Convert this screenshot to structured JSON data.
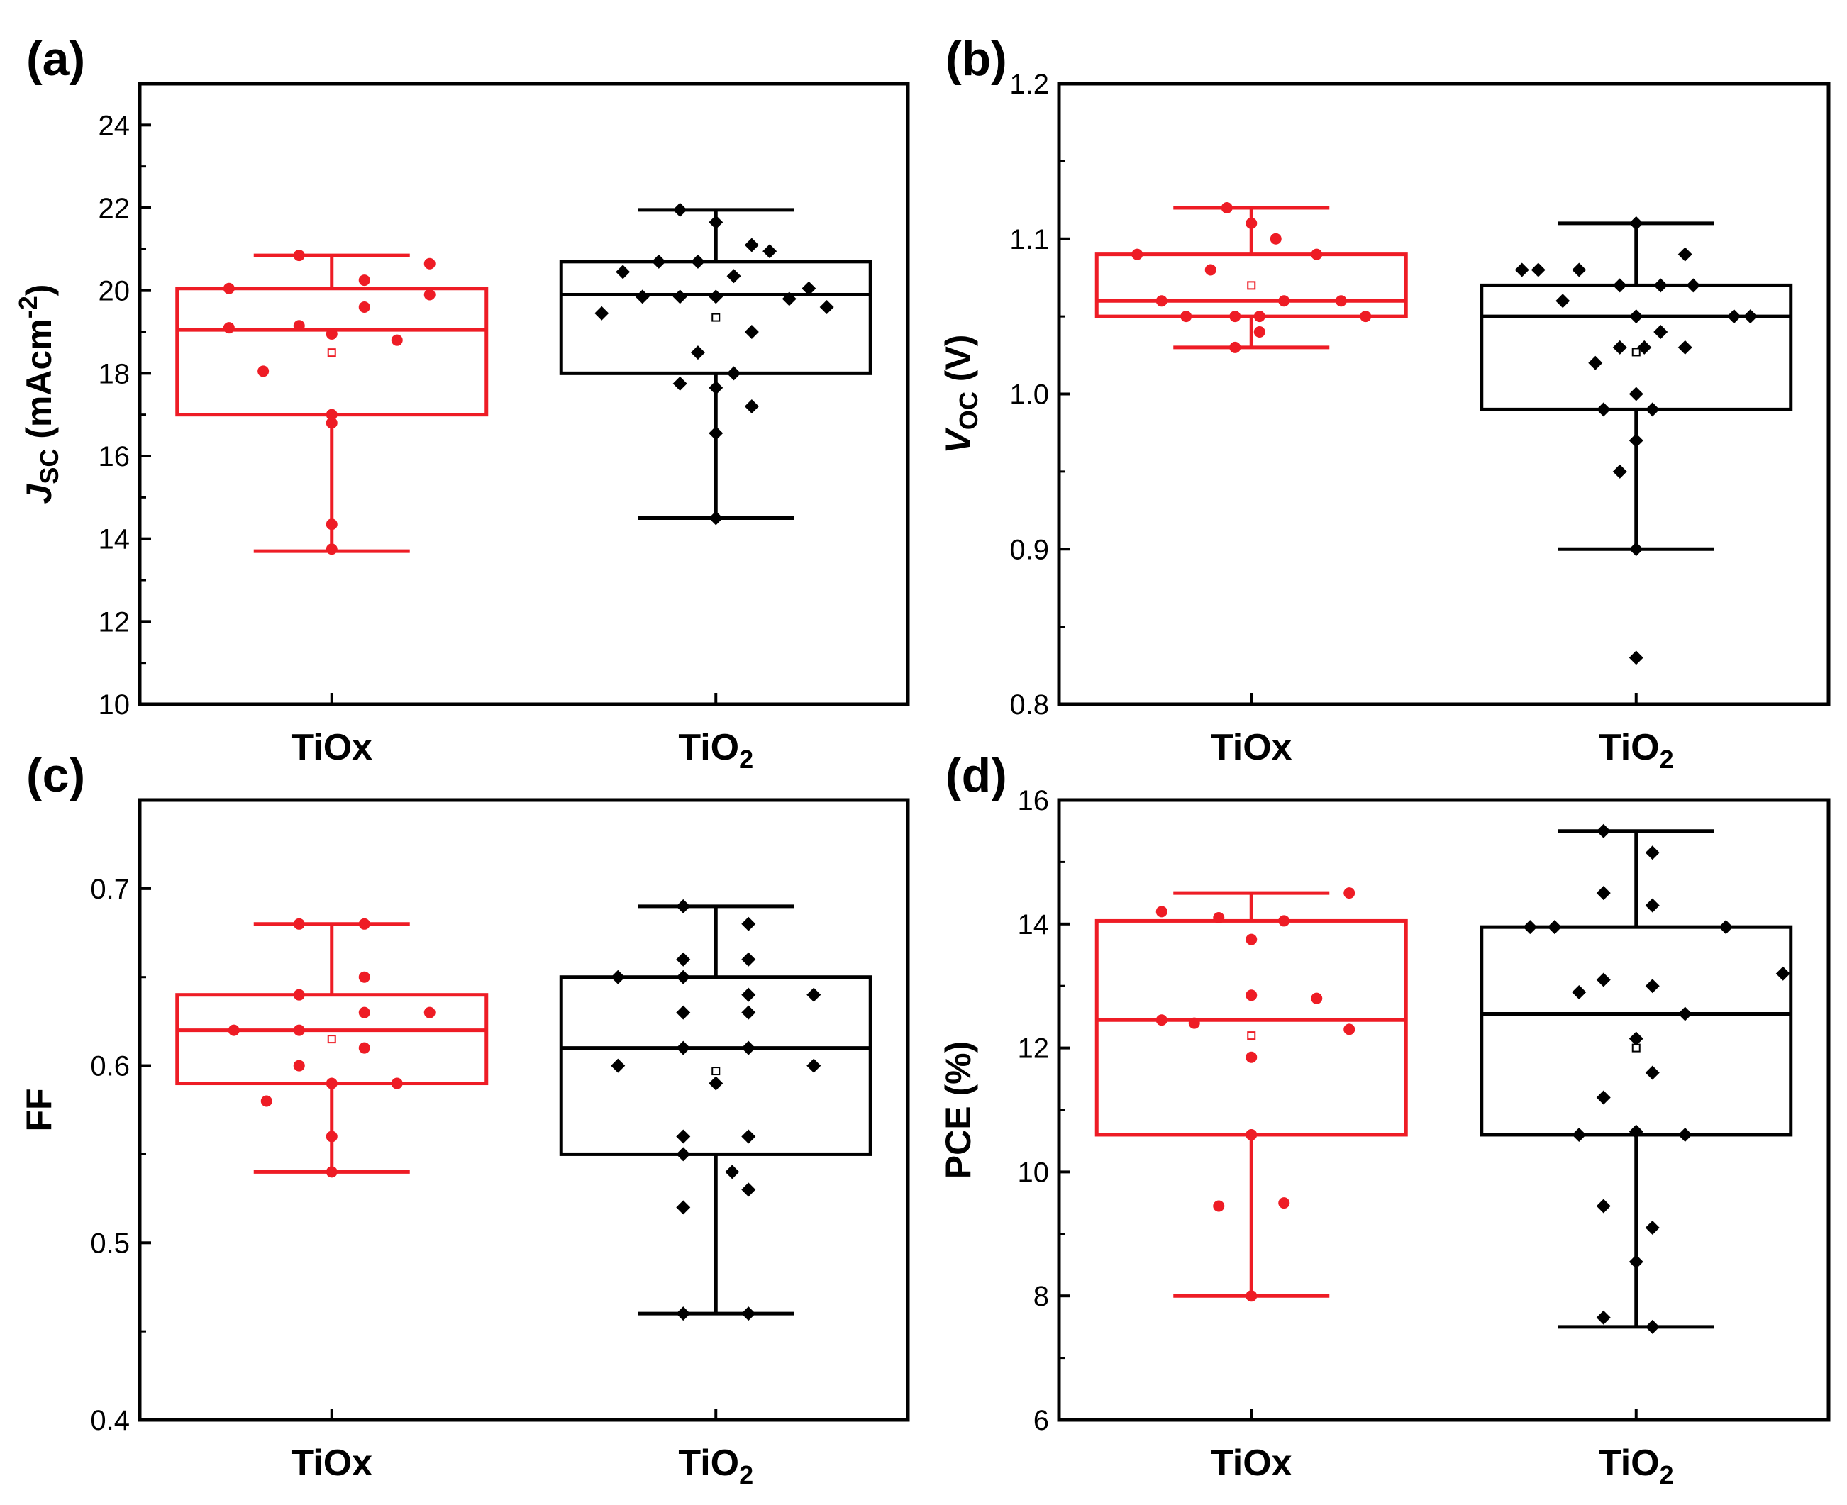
{
  "colors": {
    "TiOx": "#ee1c25",
    "TiO2": "#000000"
  },
  "chart_data": [
    {
      "type": "box",
      "panel": "(a)",
      "ylabel": {
        "main": "J",
        "sub": "SC",
        "unit_pre": " (mAcm",
        "sup": "-2",
        "unit_post": ")"
      },
      "ylim": [
        10,
        25
      ],
      "yticks": [
        10,
        12,
        14,
        16,
        18,
        20,
        22,
        24
      ],
      "ytick_labels": [
        "10",
        "12",
        "14",
        "16",
        "18",
        "20",
        "22",
        "24"
      ],
      "minor_step": 1,
      "categories": [
        {
          "label": "TiOx",
          "sub": "",
          "color": "TiOx",
          "marker": "circle",
          "box": {
            "whisker_low": 13.7,
            "q1": 17.0,
            "median": 19.05,
            "q3": 20.05,
            "whisker_high": 20.85,
            "mean": 18.5
          },
          "points": [
            {
              "dx": -0.63,
              "y": 20.05
            },
            {
              "dx": -0.63,
              "y": 19.1
            },
            {
              "dx": -0.42,
              "y": 18.05
            },
            {
              "dx": -0.2,
              "y": 20.85
            },
            {
              "dx": -0.2,
              "y": 19.15
            },
            {
              "dx": 0.0,
              "y": 18.95
            },
            {
              "dx": 0.0,
              "y": 17.0
            },
            {
              "dx": 0.0,
              "y": 16.8
            },
            {
              "dx": 0.0,
              "y": 14.35
            },
            {
              "dx": 0.0,
              "y": 13.75
            },
            {
              "dx": 0.2,
              "y": 20.25
            },
            {
              "dx": 0.2,
              "y": 19.6
            },
            {
              "dx": 0.4,
              "y": 18.8
            },
            {
              "dx": 0.6,
              "y": 20.65
            },
            {
              "dx": 0.6,
              "y": 19.9
            }
          ]
        },
        {
          "label": "TiO",
          "sub": "2",
          "color": "TiO2",
          "marker": "diamond",
          "box": {
            "whisker_low": 14.5,
            "q1": 18.0,
            "median": 19.9,
            "q3": 20.7,
            "whisker_high": 21.95,
            "mean": 19.35
          },
          "points": [
            {
              "dx": -0.7,
              "y": 19.45
            },
            {
              "dx": -0.57,
              "y": 20.45
            },
            {
              "dx": -0.45,
              "y": 19.85
            },
            {
              "dx": -0.35,
              "y": 20.7
            },
            {
              "dx": -0.22,
              "y": 21.95
            },
            {
              "dx": -0.22,
              "y": 19.85
            },
            {
              "dx": -0.22,
              "y": 17.75
            },
            {
              "dx": -0.11,
              "y": 20.7
            },
            {
              "dx": -0.11,
              "y": 18.5
            },
            {
              "dx": 0.0,
              "y": 21.65
            },
            {
              "dx": 0.0,
              "y": 19.85
            },
            {
              "dx": 0.0,
              "y": 17.65
            },
            {
              "dx": 0.0,
              "y": 16.55
            },
            {
              "dx": 0.0,
              "y": 14.5
            },
            {
              "dx": 0.11,
              "y": 18.0
            },
            {
              "dx": 0.11,
              "y": 20.35
            },
            {
              "dx": 0.22,
              "y": 21.1
            },
            {
              "dx": 0.22,
              "y": 19.0
            },
            {
              "dx": 0.22,
              "y": 17.2
            },
            {
              "dx": 0.33,
              "y": 20.95
            },
            {
              "dx": 0.45,
              "y": 19.8
            },
            {
              "dx": 0.57,
              "y": 20.05
            },
            {
              "dx": 0.68,
              "y": 19.6
            }
          ]
        }
      ]
    },
    {
      "type": "box",
      "panel": "(b)",
      "ylabel": {
        "main": "V",
        "sub": "OC",
        "unit_pre": " (V)",
        "sup": "",
        "unit_post": ""
      },
      "ylim": [
        0.8,
        1.2
      ],
      "yticks": [
        0.8,
        0.9,
        1.0,
        1.1,
        1.2
      ],
      "ytick_labels": [
        "0.8",
        "0.9",
        "1.0",
        "1.1",
        "1.2"
      ],
      "minor_step": 0.05,
      "categories": [
        {
          "label": "TiOx",
          "sub": "",
          "color": "TiOx",
          "marker": "circle",
          "box": {
            "whisker_low": 1.03,
            "q1": 1.05,
            "median": 1.06,
            "q3": 1.09,
            "whisker_high": 1.12,
            "mean": 1.07
          },
          "points": [
            {
              "dx": -0.7,
              "y": 1.09
            },
            {
              "dx": -0.55,
              "y": 1.06
            },
            {
              "dx": -0.4,
              "y": 1.05
            },
            {
              "dx": -0.25,
              "y": 1.08
            },
            {
              "dx": -0.15,
              "y": 1.12
            },
            {
              "dx": -0.1,
              "y": 1.05
            },
            {
              "dx": -0.1,
              "y": 1.03
            },
            {
              "dx": 0.0,
              "y": 1.11
            },
            {
              "dx": 0.05,
              "y": 1.05
            },
            {
              "dx": 0.05,
              "y": 1.04
            },
            {
              "dx": 0.15,
              "y": 1.1
            },
            {
              "dx": 0.2,
              "y": 1.06
            },
            {
              "dx": 0.4,
              "y": 1.09
            },
            {
              "dx": 0.55,
              "y": 1.06
            },
            {
              "dx": 0.7,
              "y": 1.05
            }
          ]
        },
        {
          "label": "TiO",
          "sub": "2",
          "color": "TiO2",
          "marker": "diamond",
          "box": {
            "whisker_low": 0.9,
            "q1": 0.99,
            "median": 1.05,
            "q3": 1.07,
            "whisker_high": 1.11,
            "mean": 1.027
          },
          "points": [
            {
              "dx": -0.7,
              "y": 1.08
            },
            {
              "dx": -0.6,
              "y": 1.08
            },
            {
              "dx": -0.45,
              "y": 1.06
            },
            {
              "dx": -0.35,
              "y": 1.08
            },
            {
              "dx": -0.25,
              "y": 1.02
            },
            {
              "dx": -0.2,
              "y": 0.99
            },
            {
              "dx": -0.1,
              "y": 1.07
            },
            {
              "dx": -0.1,
              "y": 1.03
            },
            {
              "dx": -0.1,
              "y": 0.95
            },
            {
              "dx": 0.0,
              "y": 1.11
            },
            {
              "dx": 0.0,
              "y": 1.05
            },
            {
              "dx": 0.0,
              "y": 1.0
            },
            {
              "dx": 0.0,
              "y": 0.9
            },
            {
              "dx": 0.0,
              "y": 0.83
            },
            {
              "dx": 0.05,
              "y": 1.03
            },
            {
              "dx": 0.0,
              "y": 0.97
            },
            {
              "dx": 0.1,
              "y": 0.99
            },
            {
              "dx": 0.15,
              "y": 1.07
            },
            {
              "dx": 0.15,
              "y": 1.04
            },
            {
              "dx": 0.3,
              "y": 1.09
            },
            {
              "dx": 0.3,
              "y": 1.03
            },
            {
              "dx": 0.35,
              "y": 1.07
            },
            {
              "dx": 0.6,
              "y": 1.05
            },
            {
              "dx": 0.7,
              "y": 1.05
            }
          ]
        }
      ]
    },
    {
      "type": "box",
      "panel": "(c)",
      "ylabel": {
        "main": "FF",
        "sub": "",
        "unit_pre": "",
        "sup": "",
        "unit_post": ""
      },
      "ylim": [
        0.4,
        0.75
      ],
      "yticks": [
        0.4,
        0.5,
        0.6,
        0.7
      ],
      "ytick_labels": [
        "0.4",
        "0.5",
        "0.6",
        "0.7"
      ],
      "minor_step": 0.05,
      "categories": [
        {
          "label": "TiOx",
          "sub": "",
          "color": "TiOx",
          "marker": "circle",
          "box": {
            "whisker_low": 0.54,
            "q1": 0.59,
            "median": 0.62,
            "q3": 0.64,
            "whisker_high": 0.68,
            "mean": 0.615
          },
          "points": [
            {
              "dx": -0.6,
              "y": 0.62
            },
            {
              "dx": -0.4,
              "y": 0.58
            },
            {
              "dx": -0.2,
              "y": 0.68
            },
            {
              "dx": -0.2,
              "y": 0.64
            },
            {
              "dx": -0.2,
              "y": 0.62
            },
            {
              "dx": -0.2,
              "y": 0.6
            },
            {
              "dx": 0.0,
              "y": 0.59
            },
            {
              "dx": 0.0,
              "y": 0.56
            },
            {
              "dx": 0.0,
              "y": 0.54
            },
            {
              "dx": 0.2,
              "y": 0.68
            },
            {
              "dx": 0.2,
              "y": 0.65
            },
            {
              "dx": 0.2,
              "y": 0.63
            },
            {
              "dx": 0.2,
              "y": 0.61
            },
            {
              "dx": 0.4,
              "y": 0.59
            },
            {
              "dx": 0.6,
              "y": 0.63
            }
          ]
        },
        {
          "label": "TiO",
          "sub": "2",
          "color": "TiO2",
          "marker": "diamond",
          "box": {
            "whisker_low": 0.46,
            "q1": 0.55,
            "median": 0.61,
            "q3": 0.65,
            "whisker_high": 0.69,
            "mean": 0.597
          },
          "points": [
            {
              "dx": -0.6,
              "y": 0.65
            },
            {
              "dx": -0.6,
              "y": 0.6
            },
            {
              "dx": -0.2,
              "y": 0.69
            },
            {
              "dx": -0.2,
              "y": 0.66
            },
            {
              "dx": -0.2,
              "y": 0.65
            },
            {
              "dx": -0.2,
              "y": 0.63
            },
            {
              "dx": -0.2,
              "y": 0.61
            },
            {
              "dx": -0.2,
              "y": 0.56
            },
            {
              "dx": -0.2,
              "y": 0.55
            },
            {
              "dx": -0.2,
              "y": 0.52
            },
            {
              "dx": -0.2,
              "y": 0.46
            },
            {
              "dx": 0.0,
              "y": 0.59
            },
            {
              "dx": 0.1,
              "y": 0.54
            },
            {
              "dx": 0.2,
              "y": 0.68
            },
            {
              "dx": 0.2,
              "y": 0.66
            },
            {
              "dx": 0.2,
              "y": 0.64
            },
            {
              "dx": 0.2,
              "y": 0.63
            },
            {
              "dx": 0.2,
              "y": 0.61
            },
            {
              "dx": 0.2,
              "y": 0.56
            },
            {
              "dx": 0.2,
              "y": 0.53
            },
            {
              "dx": 0.2,
              "y": 0.46
            },
            {
              "dx": 0.6,
              "y": 0.64
            },
            {
              "dx": 0.6,
              "y": 0.6
            }
          ]
        }
      ]
    },
    {
      "type": "box",
      "panel": "(d)",
      "ylabel": {
        "main": "PCE (%)",
        "sub": "",
        "unit_pre": "",
        "sup": "",
        "unit_post": ""
      },
      "ylim": [
        6,
        16
      ],
      "yticks": [
        6,
        8,
        10,
        12,
        14,
        16
      ],
      "ytick_labels": [
        "6",
        "8",
        "10",
        "12",
        "14",
        "16"
      ],
      "minor_step": 1,
      "categories": [
        {
          "label": "TiOx",
          "sub": "",
          "color": "TiOx",
          "marker": "circle",
          "box": {
            "whisker_low": 8.0,
            "q1": 10.6,
            "median": 12.45,
            "q3": 14.05,
            "whisker_high": 14.5,
            "mean": 12.2
          },
          "points": [
            {
              "dx": -0.55,
              "y": 14.2
            },
            {
              "dx": -0.55,
              "y": 12.45
            },
            {
              "dx": -0.35,
              "y": 12.4
            },
            {
              "dx": -0.2,
              "y": 14.1
            },
            {
              "dx": -0.2,
              "y": 9.45
            },
            {
              "dx": 0.0,
              "y": 13.75
            },
            {
              "dx": 0.0,
              "y": 12.85
            },
            {
              "dx": 0.0,
              "y": 11.85
            },
            {
              "dx": 0.0,
              "y": 10.6
            },
            {
              "dx": 0.0,
              "y": 8.0
            },
            {
              "dx": 0.2,
              "y": 14.05
            },
            {
              "dx": 0.2,
              "y": 9.5
            },
            {
              "dx": 0.4,
              "y": 12.8
            },
            {
              "dx": 0.6,
              "y": 14.5
            },
            {
              "dx": 0.6,
              "y": 12.3
            }
          ]
        },
        {
          "label": "TiO",
          "sub": "2",
          "color": "TiO2",
          "marker": "diamond",
          "box": {
            "whisker_low": 7.5,
            "q1": 10.6,
            "median": 12.55,
            "q3": 13.95,
            "whisker_high": 15.5,
            "mean": 12.0
          },
          "points": [
            {
              "dx": -0.65,
              "y": 13.95
            },
            {
              "dx": -0.5,
              "y": 13.95
            },
            {
              "dx": -0.35,
              "y": 12.9
            },
            {
              "dx": -0.35,
              "y": 10.6
            },
            {
              "dx": -0.2,
              "y": 15.5
            },
            {
              "dx": -0.2,
              "y": 14.5
            },
            {
              "dx": -0.2,
              "y": 13.1
            },
            {
              "dx": -0.2,
              "y": 11.2
            },
            {
              "dx": -0.2,
              "y": 9.45
            },
            {
              "dx": -0.2,
              "y": 7.65
            },
            {
              "dx": 0.0,
              "y": 12.15
            },
            {
              "dx": 0.0,
              "y": 10.65
            },
            {
              "dx": 0.0,
              "y": 8.55
            },
            {
              "dx": 0.1,
              "y": 15.15
            },
            {
              "dx": 0.1,
              "y": 14.3
            },
            {
              "dx": 0.1,
              "y": 13.0
            },
            {
              "dx": 0.1,
              "y": 11.6
            },
            {
              "dx": 0.1,
              "y": 9.1
            },
            {
              "dx": 0.1,
              "y": 7.5
            },
            {
              "dx": 0.3,
              "y": 12.55
            },
            {
              "dx": 0.3,
              "y": 10.6
            },
            {
              "dx": 0.55,
              "y": 13.95
            },
            {
              "dx": 0.9,
              "y": 13.2
            }
          ]
        }
      ]
    }
  ]
}
